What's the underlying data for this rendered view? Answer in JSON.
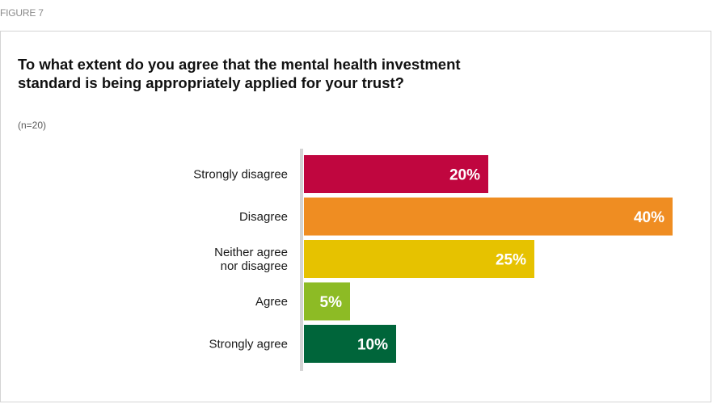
{
  "figure_label": "FIGURE 7",
  "chart_data": {
    "type": "bar",
    "orientation": "horizontal",
    "title": "To what extent do you agree that the mental health investment standard is being appropriately applied for your trust?",
    "subtitle": "(n=20)",
    "categories": [
      "Strongly disagree",
      "Disagree",
      "Neither agree nor disagree",
      "Agree",
      "Strongly agree"
    ],
    "category_lines": [
      [
        "Strongly disagree"
      ],
      [
        "Disagree"
      ],
      [
        "Neither agree",
        "nor disagree"
      ],
      [
        "Agree"
      ],
      [
        "Strongly agree"
      ]
    ],
    "values": [
      20,
      40,
      25,
      5,
      10
    ],
    "value_labels": [
      "20%",
      "40%",
      "25%",
      "5%",
      "10%"
    ],
    "colors": [
      "#c0063f",
      "#ef8d22",
      "#e6c200",
      "#8dbb25",
      "#00653a"
    ],
    "xlim": [
      0,
      40
    ],
    "grid": false,
    "legend": "none"
  }
}
